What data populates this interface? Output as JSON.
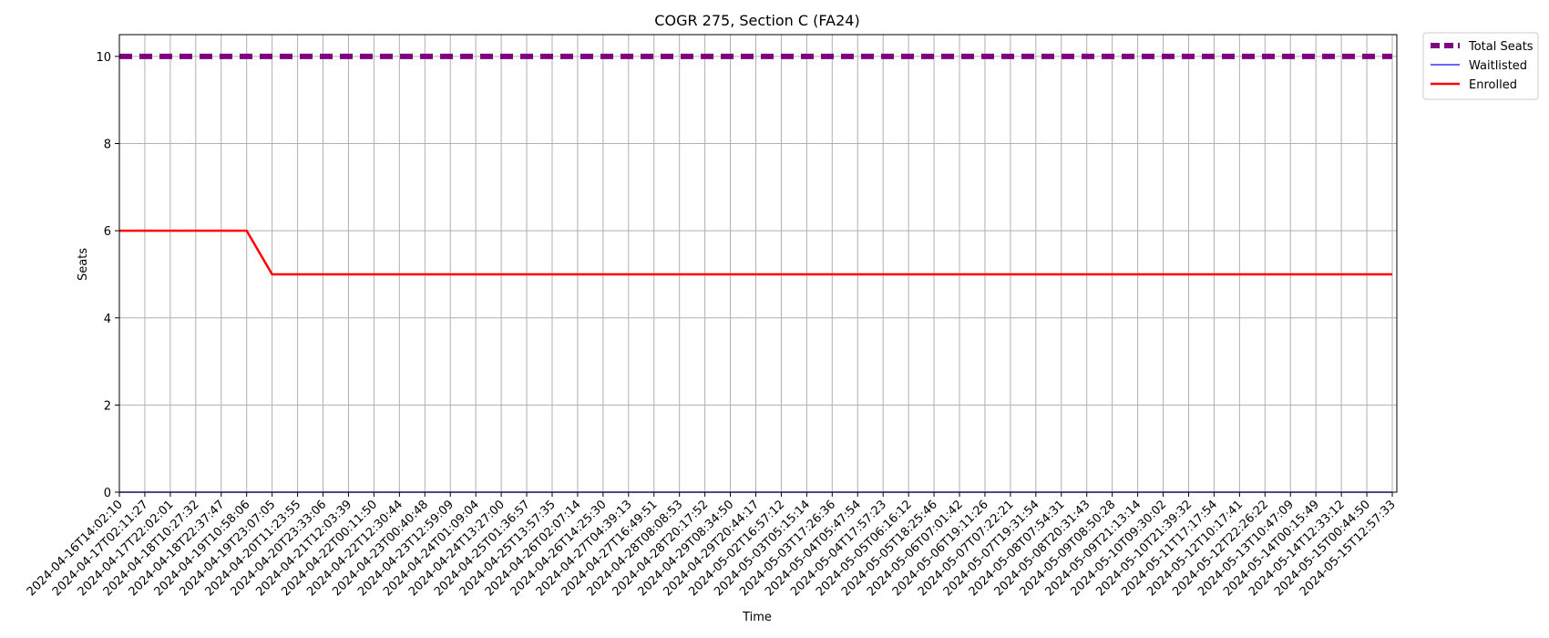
{
  "chart_data": {
    "type": "line",
    "title": "COGR 275, Section C (FA24)",
    "xlabel": "Time",
    "ylabel": "Seats",
    "ylim": [
      0,
      10.5
    ],
    "yticks": [
      0,
      2,
      4,
      6,
      8,
      10
    ],
    "grid": true,
    "legend_position": "outside-top-right",
    "x": [
      "2024-04-16T14:02:10",
      "2024-04-17T02:11:27",
      "2024-04-17T22:02:01",
      "2024-04-18T10:27:32",
      "2024-04-18T22:37:47",
      "2024-04-19T10:58:06",
      "2024-04-19T23:07:05",
      "2024-04-20T11:23:55",
      "2024-04-20T23:33:06",
      "2024-04-21T12:03:39",
      "2024-04-22T00:11:50",
      "2024-04-22T12:30:44",
      "2024-04-23T00:40:48",
      "2024-04-23T12:59:09",
      "2024-04-24T01:09:04",
      "2024-04-24T13:27:00",
      "2024-04-25T01:36:57",
      "2024-04-25T13:57:35",
      "2024-04-26T02:07:14",
      "2024-04-26T14:25:30",
      "2024-04-27T04:39:13",
      "2024-04-27T16:49:51",
      "2024-04-28T08:08:53",
      "2024-04-28T20:17:52",
      "2024-04-29T08:34:50",
      "2024-04-29T20:44:17",
      "2024-05-02T16:57:12",
      "2024-05-03T05:15:14",
      "2024-05-03T17:26:36",
      "2024-05-04T05:47:54",
      "2024-05-04T17:57:23",
      "2024-05-05T06:16:12",
      "2024-05-05T18:25:46",
      "2024-05-06T07:01:42",
      "2024-05-06T19:11:26",
      "2024-05-07T07:22:21",
      "2024-05-07T19:31:54",
      "2024-05-08T07:54:31",
      "2024-05-08T20:31:43",
      "2024-05-09T08:50:28",
      "2024-05-09T21:13:14",
      "2024-05-10T09:30:02",
      "2024-05-10T21:39:32",
      "2024-05-11T17:17:54",
      "2024-05-12T10:17:41",
      "2024-05-12T22:26:22",
      "2024-05-13T10:47:09",
      "2024-05-14T00:15:49",
      "2024-05-14T12:33:12",
      "2024-05-15T00:44:50",
      "2024-05-15T12:57:33"
    ],
    "series": [
      {
        "name": "Total Seats",
        "style": "dashed",
        "color": "#800080",
        "values": [
          10,
          10,
          10,
          10,
          10,
          10,
          10,
          10,
          10,
          10,
          10,
          10,
          10,
          10,
          10,
          10,
          10,
          10,
          10,
          10,
          10,
          10,
          10,
          10,
          10,
          10,
          10,
          10,
          10,
          10,
          10,
          10,
          10,
          10,
          10,
          10,
          10,
          10,
          10,
          10,
          10,
          10,
          10,
          10,
          10,
          10,
          10,
          10,
          10,
          10,
          10
        ]
      },
      {
        "name": "Waitlisted",
        "style": "solid",
        "color": "#3333ff",
        "values": [
          0,
          0,
          0,
          0,
          0,
          0,
          0,
          0,
          0,
          0,
          0,
          0,
          0,
          0,
          0,
          0,
          0,
          0,
          0,
          0,
          0,
          0,
          0,
          0,
          0,
          0,
          0,
          0,
          0,
          0,
          0,
          0,
          0,
          0,
          0,
          0,
          0,
          0,
          0,
          0,
          0,
          0,
          0,
          0,
          0,
          0,
          0,
          0,
          0,
          0,
          0
        ]
      },
      {
        "name": "Enrolled",
        "style": "solid",
        "color": "#ff0000",
        "values": [
          6,
          6,
          6,
          6,
          6,
          6,
          5,
          5,
          5,
          5,
          5,
          5,
          5,
          5,
          5,
          5,
          5,
          5,
          5,
          5,
          5,
          5,
          5,
          5,
          5,
          5,
          5,
          5,
          5,
          5,
          5,
          5,
          5,
          5,
          5,
          5,
          5,
          5,
          5,
          5,
          5,
          5,
          5,
          5,
          5,
          5,
          5,
          5,
          5,
          5,
          5
        ]
      }
    ]
  }
}
